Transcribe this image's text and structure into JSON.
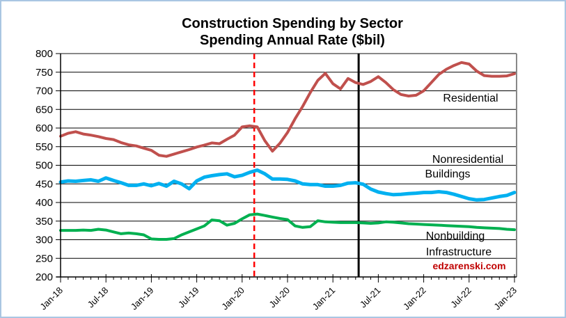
{
  "window": {
    "background": "#ffffff",
    "border_color": "#a9c6e2"
  },
  "chart": {
    "title_line1": "Construction Spending by Sector",
    "title_line2": "Spending Annual Rate ($bil)",
    "watermark": "edzarenski.com",
    "watermark_color": "#c00000",
    "labels": {
      "residential": "Residential",
      "nonresidential_1": "Nonresidential",
      "nonresidential_2": "Buildings",
      "nonbuilding_1": "Nonbuilding",
      "nonbuilding_2": "Infrastructure"
    }
  },
  "chart_data": {
    "type": "line",
    "title": "Construction Spending by Sector",
    "subtitle": "Spending Annual Rate ($bil)",
    "grid": true,
    "legend_position": "inline-annotations",
    "ylim": [
      200,
      800
    ],
    "y_tick_step": 50,
    "y_tick_labels": [
      "200",
      "250",
      "300",
      "350",
      "400",
      "450",
      "500",
      "550",
      "600",
      "650",
      "700",
      "750",
      "800"
    ],
    "x_tick_labels": [
      "Jan-18",
      "Jul-18",
      "Jan-19",
      "Jul-19",
      "Jan-20",
      "Jul-20",
      "Jan-21",
      "Jul-21",
      "Jan-22",
      "Jul-22",
      "Jan-23"
    ],
    "x_months": [
      "Jan-18",
      "Feb-18",
      "Mar-18",
      "Apr-18",
      "May-18",
      "Jun-18",
      "Jul-18",
      "Aug-18",
      "Sep-18",
      "Oct-18",
      "Nov-18",
      "Dec-18",
      "Jan-19",
      "Feb-19",
      "Mar-19",
      "Apr-19",
      "May-19",
      "Jun-19",
      "Jul-19",
      "Aug-19",
      "Sep-19",
      "Oct-19",
      "Nov-19",
      "Dec-19",
      "Jan-20",
      "Feb-20",
      "Mar-20",
      "Apr-20",
      "May-20",
      "Jun-20",
      "Jul-20",
      "Aug-20",
      "Sep-20",
      "Oct-20",
      "Nov-20",
      "Dec-20",
      "Jan-21",
      "Feb-21",
      "Mar-21",
      "Apr-21",
      "May-21",
      "Jun-21",
      "Jul-21",
      "Aug-21",
      "Sep-21",
      "Oct-21",
      "Nov-21",
      "Dec-21",
      "Jan-22",
      "Feb-22",
      "Mar-22",
      "Apr-22",
      "May-22",
      "Jun-22",
      "Jul-22",
      "Aug-22",
      "Sep-22",
      "Oct-22",
      "Nov-22",
      "Dec-22",
      "Jan-23"
    ],
    "series": [
      {
        "name": "Residential",
        "color": "#c0504d",
        "stroke_width": 4,
        "values": [
          578,
          586,
          590,
          584,
          581,
          577,
          572,
          569,
          561,
          555,
          552,
          546,
          540,
          527,
          524,
          530,
          536,
          542,
          549,
          554,
          560,
          558,
          570,
          581,
          603,
          606,
          603,
          566,
          538,
          559,
          588,
          625,
          658,
          695,
          728,
          747,
          719,
          705,
          733,
          722,
          717,
          725,
          738,
          722,
          703,
          690,
          686,
          688,
          700,
          722,
          744,
          758,
          768,
          776,
          772,
          753,
          741,
          739,
          739,
          740,
          746
        ]
      },
      {
        "name": "Nonresidential Buildings",
        "color": "#00b0f0",
        "stroke_width": 5,
        "values": [
          455,
          458,
          457,
          459,
          461,
          457,
          466,
          459,
          453,
          446,
          446,
          450,
          445,
          451,
          444,
          457,
          450,
          437,
          458,
          468,
          472,
          475,
          477,
          469,
          473,
          481,
          487,
          477,
          463,
          463,
          462,
          458,
          450,
          448,
          448,
          444,
          444,
          446,
          452,
          453,
          449,
          436,
          428,
          424,
          421,
          422,
          424,
          425,
          427,
          427,
          429,
          427,
          422,
          416,
          410,
          407,
          408,
          412,
          416,
          419,
          427
        ]
      },
      {
        "name": "Nonbuilding Infrastructure",
        "color": "#00b050",
        "stroke_width": 4,
        "values": [
          325,
          325,
          325,
          326,
          325,
          328,
          326,
          321,
          316,
          318,
          316,
          313,
          302,
          301,
          301,
          303,
          313,
          321,
          329,
          337,
          353,
          351,
          339,
          344,
          356,
          367,
          369,
          365,
          361,
          357,
          354,
          337,
          333,
          335,
          351,
          348,
          347,
          346,
          346,
          346,
          345,
          344,
          345,
          348,
          347,
          345,
          343,
          342,
          341,
          340,
          339,
          338,
          337,
          336,
          335,
          333,
          332,
          331,
          330,
          328,
          327
        ]
      }
    ],
    "vlines": [
      {
        "name": "dashed-red-marker",
        "nearest_month": "Mar-20",
        "x_index": 25.6,
        "style": "dashed",
        "color": "#ff0000",
        "stroke_width": 2.5
      },
      {
        "name": "solid-black-marker",
        "nearest_month": "May-21",
        "x_index": 39.4,
        "style": "solid",
        "color": "#000000",
        "stroke_width": 3
      }
    ]
  }
}
